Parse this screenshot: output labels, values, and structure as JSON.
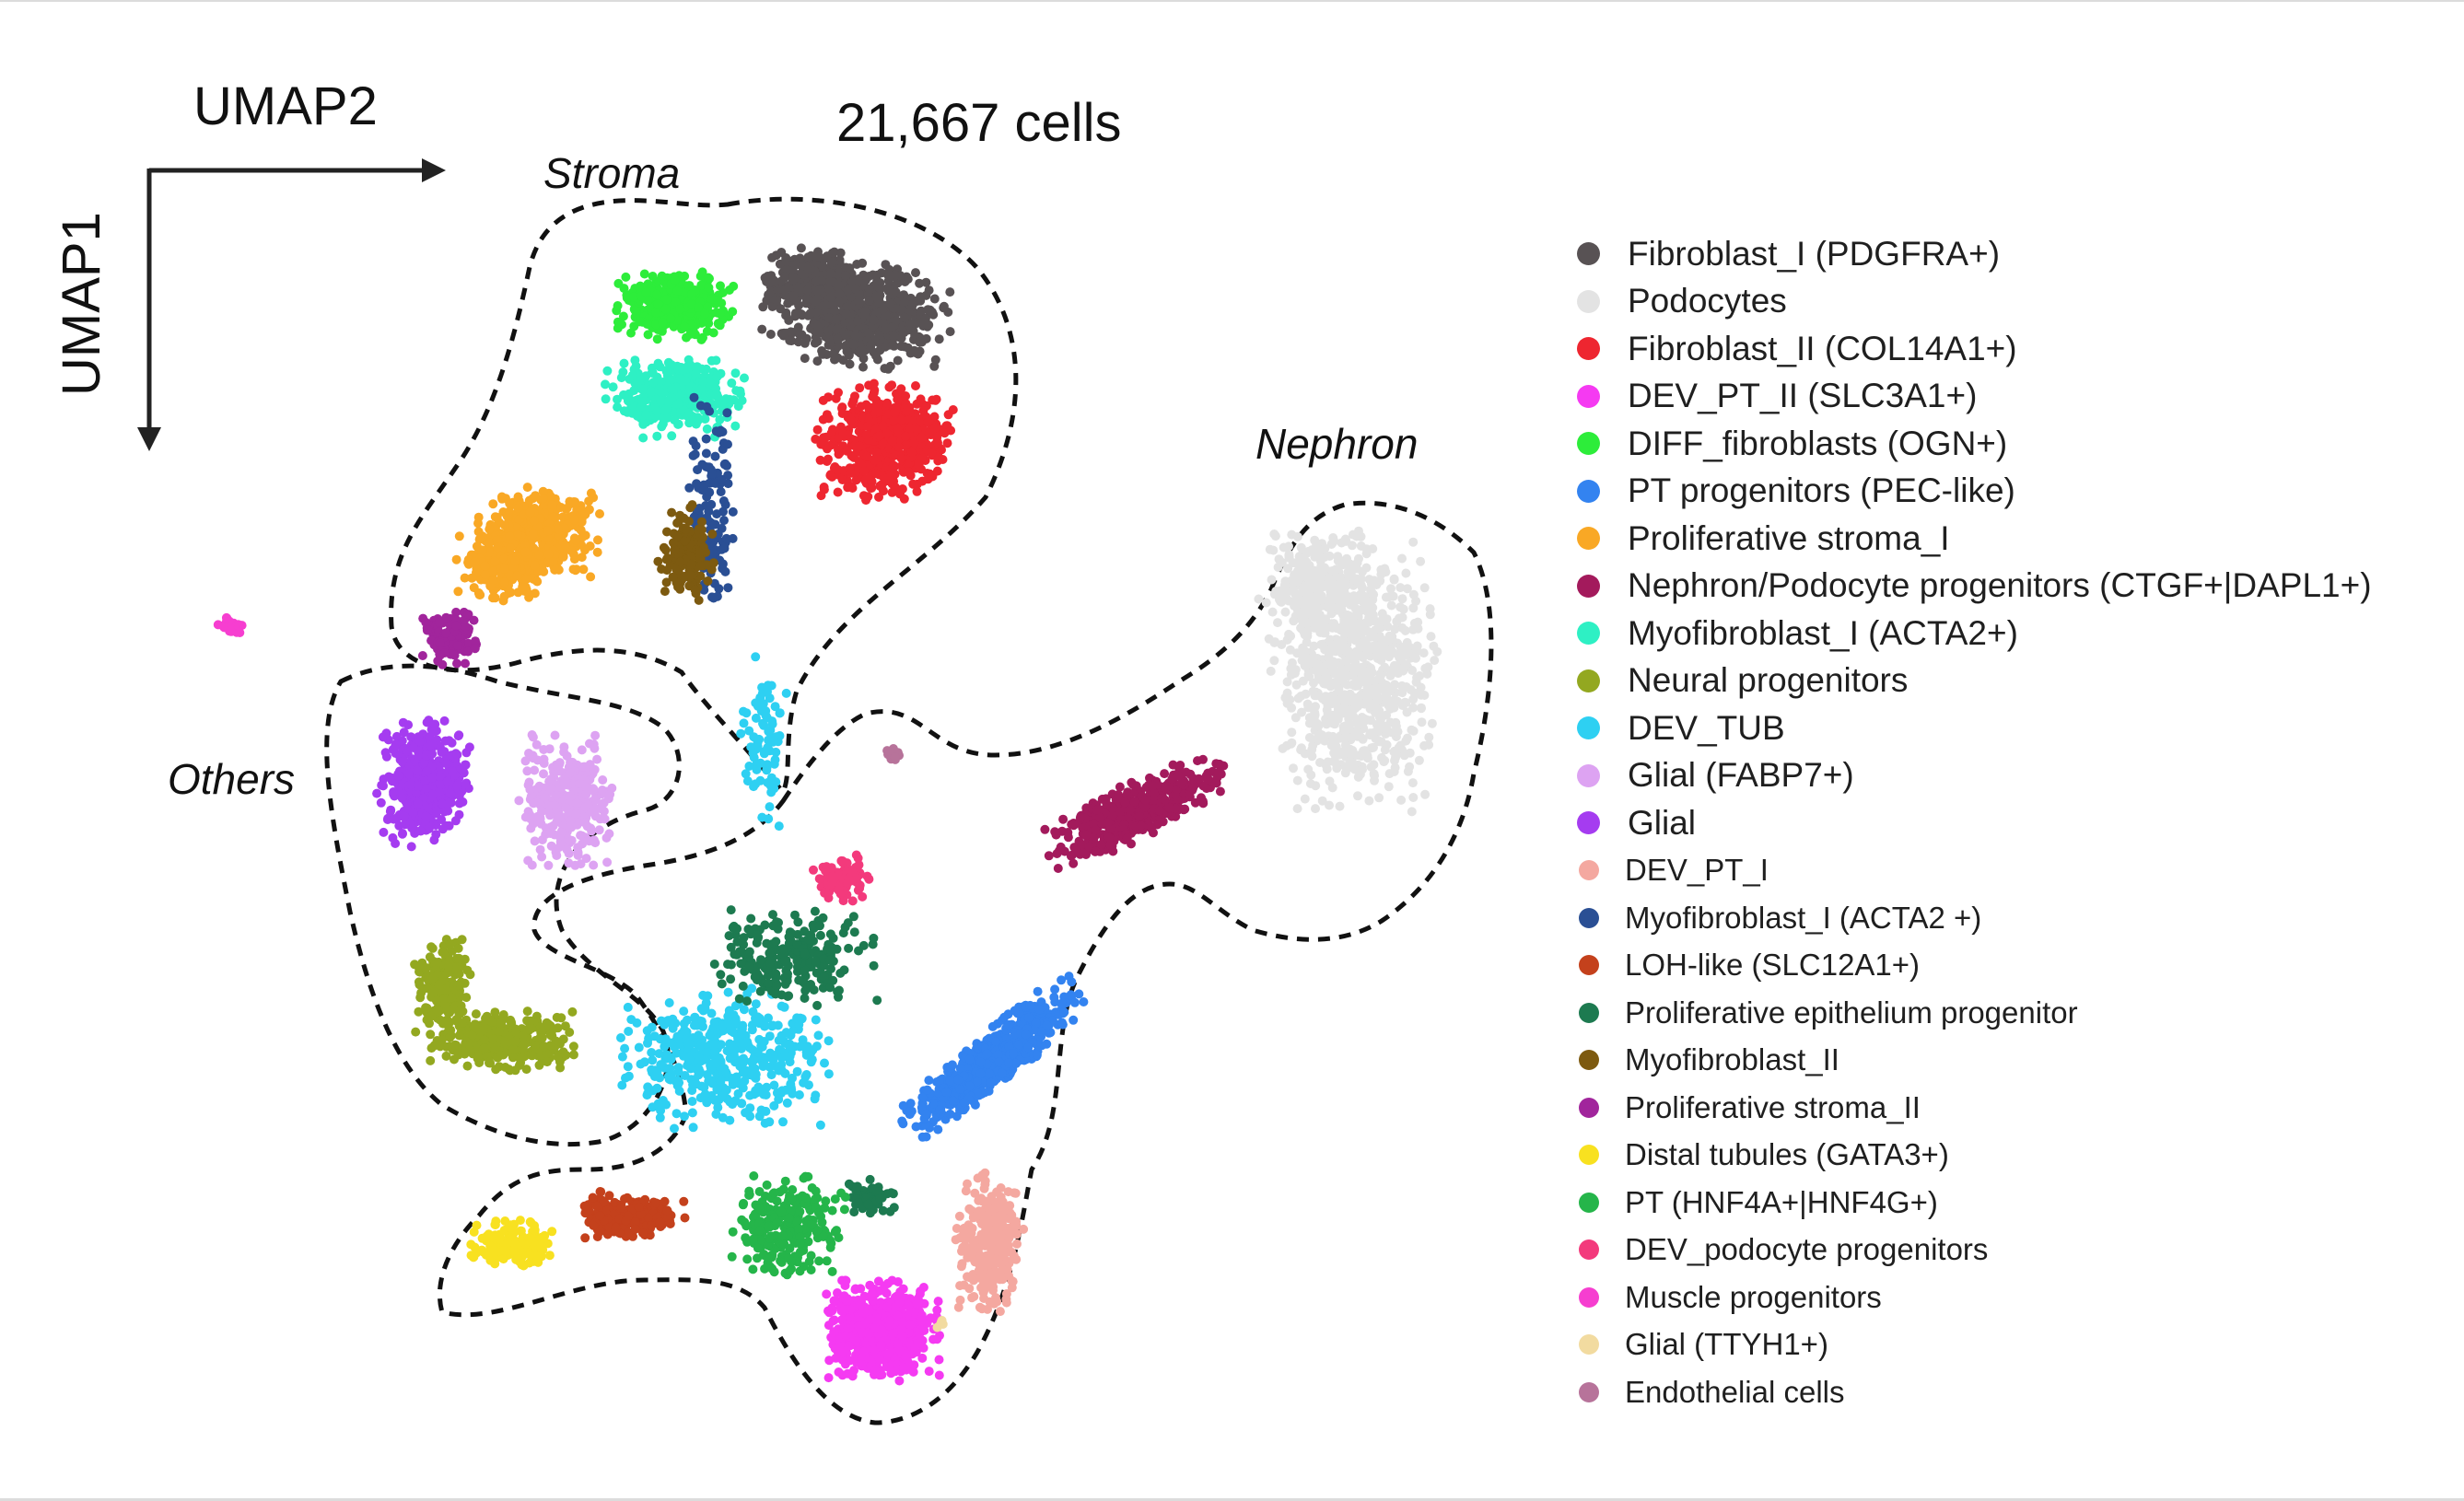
{
  "chart_data": {
    "type": "scatter",
    "title": "21,667 cells",
    "xlabel": "UMAP2",
    "ylabel": "UMAP1",
    "grid": false,
    "legend_position": "right",
    "region_labels": [
      "Stroma",
      "Nephron",
      "Others"
    ],
    "series": [
      {
        "name": "Fibroblast_I (PDGFRA+)",
        "color": "#585254"
      },
      {
        "name": "Podocytes",
        "color": "#e3e3e3"
      },
      {
        "name": "Fibroblast_II (COL14A1+)",
        "color": "#ee2630"
      },
      {
        "name": "DEV_PT_II (SLC3A1+)",
        "color": "#f53af2"
      },
      {
        "name": "DIFF_fibroblasts (OGN+)",
        "color": "#2ded3a"
      },
      {
        "name": "PT progenitors (PEC-like)",
        "color": "#3383f0"
      },
      {
        "name": "Proliferative stroma_I",
        "color": "#f9a825"
      },
      {
        "name": "Nephron/Podocyte progenitors (CTGF+|DAPL1+)",
        "color": "#a31a5c"
      },
      {
        "name": "Myofibroblast_I (ACTA2+)",
        "color": "#2ef0c4"
      },
      {
        "name": "Neural progenitors",
        "color": "#93a820"
      },
      {
        "name": "DEV_TUB",
        "color": "#2ed0f2"
      },
      {
        "name": "Glial (FABP7+)",
        "color": "#dda3f2"
      },
      {
        "name": "Glial",
        "color": "#a53cf0"
      },
      {
        "name": "DEV_PT_I",
        "color": "#f4a8a0"
      },
      {
        "name": "Myofibroblast_I (ACTA2 +)",
        "color": "#2a4f94"
      },
      {
        "name": "LOH-like (SLC12A1+)",
        "color": "#c4411c"
      },
      {
        "name": "Proliferative epithelium progenitor",
        "color": "#1d7a50"
      },
      {
        "name": "Myofibroblast_II",
        "color": "#7d5a10"
      },
      {
        "name": "Proliferative stroma_II",
        "color": "#a1259c"
      },
      {
        "name": "Distal tubules (GATA3+)",
        "color": "#f8e120"
      },
      {
        "name": "PT (HNF4A+|HNF4G+)",
        "color": "#25b54a"
      },
      {
        "name": "DEV_podocyte progenitors",
        "color": "#f33a7c"
      },
      {
        "name": "Muscle progenitors",
        "color": "#f63ed0"
      },
      {
        "name": "Glial (TTYH1+)",
        "color": "#f2dba0"
      },
      {
        "name": "Endothelial cells",
        "color": "#b7739a"
      }
    ]
  }
}
